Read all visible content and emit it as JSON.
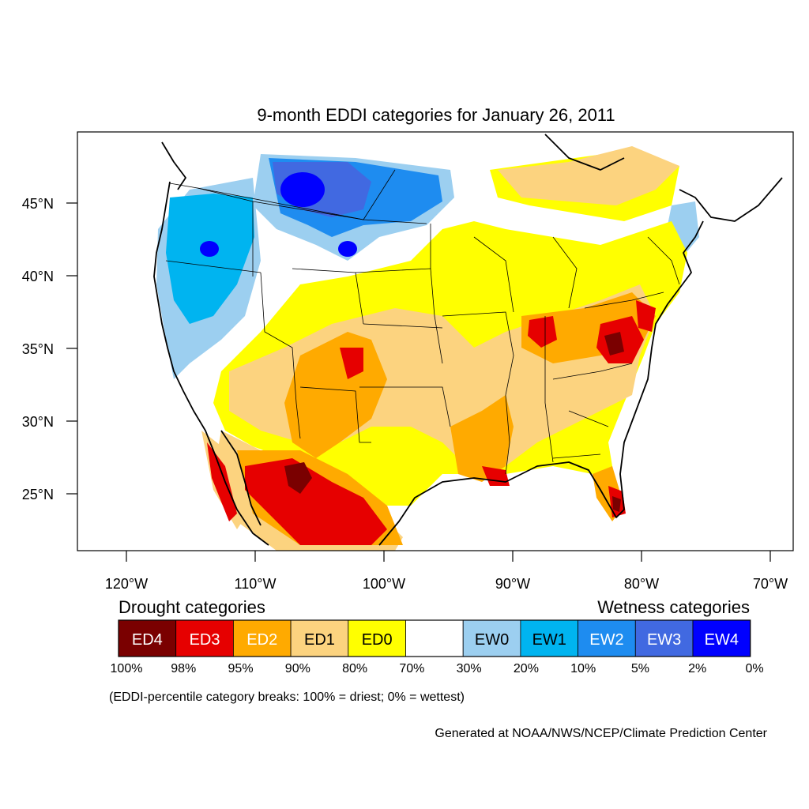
{
  "title": "9-month EDDI categories for January 26, 2011",
  "lat_labels": [
    {
      "deg": 45,
      "label": "45°N"
    },
    {
      "deg": 40,
      "label": "40°N"
    },
    {
      "deg": 35,
      "label": "35°N"
    },
    {
      "deg": 30,
      "label": "30°N"
    },
    {
      "deg": 25,
      "label": "25°N"
    }
  ],
  "lon_labels": [
    {
      "deg": -120,
      "label": "120°W"
    },
    {
      "deg": -110,
      "label": "110°W"
    },
    {
      "deg": -100,
      "label": "100°W"
    },
    {
      "deg": -90,
      "label": "90°W"
    },
    {
      "deg": -80,
      "label": "80°W"
    },
    {
      "deg": -70,
      "label": "70°W"
    }
  ],
  "legend": {
    "drought_title": "Drought categories",
    "wetness_title": "Wetness categories",
    "categories": [
      {
        "label": "ED4",
        "color": "#7a0000",
        "text_color": "#ffffff"
      },
      {
        "label": "ED3",
        "color": "#e60000",
        "text_color": "#ffffff"
      },
      {
        "label": "ED2",
        "color": "#ffaa00",
        "text_color": "#ffffff"
      },
      {
        "label": "ED1",
        "color": "#fcd37f",
        "text_color": "#000000"
      },
      {
        "label": "ED0",
        "color": "#ffff00",
        "text_color": "#000000"
      },
      {
        "label": "",
        "color": "#ffffff",
        "text_color": "#000000"
      },
      {
        "label": "EW0",
        "color": "#9ccff0",
        "text_color": "#000000"
      },
      {
        "label": "EW1",
        "color": "#00b4f0",
        "text_color": "#000000"
      },
      {
        "label": "EW2",
        "color": "#1e8cf0",
        "text_color": "#ffffff"
      },
      {
        "label": "EW3",
        "color": "#4169e1",
        "text_color": "#ffffff"
      },
      {
        "label": "EW4",
        "color": "#0000ff",
        "text_color": "#ffffff"
      }
    ],
    "breaks": [
      "100%",
      "98%",
      "95%",
      "90%",
      "80%",
      "70%",
      "30%",
      "20%",
      "10%",
      "5%",
      "2%",
      "0%"
    ],
    "note": "(EDDI-percentile category breaks: 100% = driest; 0% = wettest)"
  },
  "credit": "Generated at NOAA/NWS/NCEP/Climate Prediction Center"
}
